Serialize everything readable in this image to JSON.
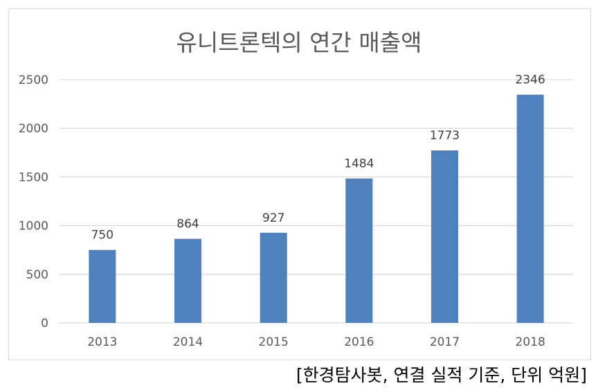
{
  "chart_data": {
    "type": "bar",
    "title": "유니트론텍의 연간 매출액",
    "categories": [
      "2013",
      "2014",
      "2015",
      "2016",
      "2017",
      "2018"
    ],
    "values": [
      750,
      864,
      927,
      1484,
      1773,
      2346
    ],
    "ylim": [
      0,
      2500
    ],
    "yticks": [
      0,
      500,
      1000,
      1500,
      2000,
      2500
    ],
    "xlabel": "",
    "ylabel": "",
    "grid": true,
    "legend": "none",
    "bar_color": "#4f81bd",
    "gridline_color": "#d9d9d9"
  },
  "source_note": "[한경탐사봇, 연결 실적 기준, 단위 억원]"
}
